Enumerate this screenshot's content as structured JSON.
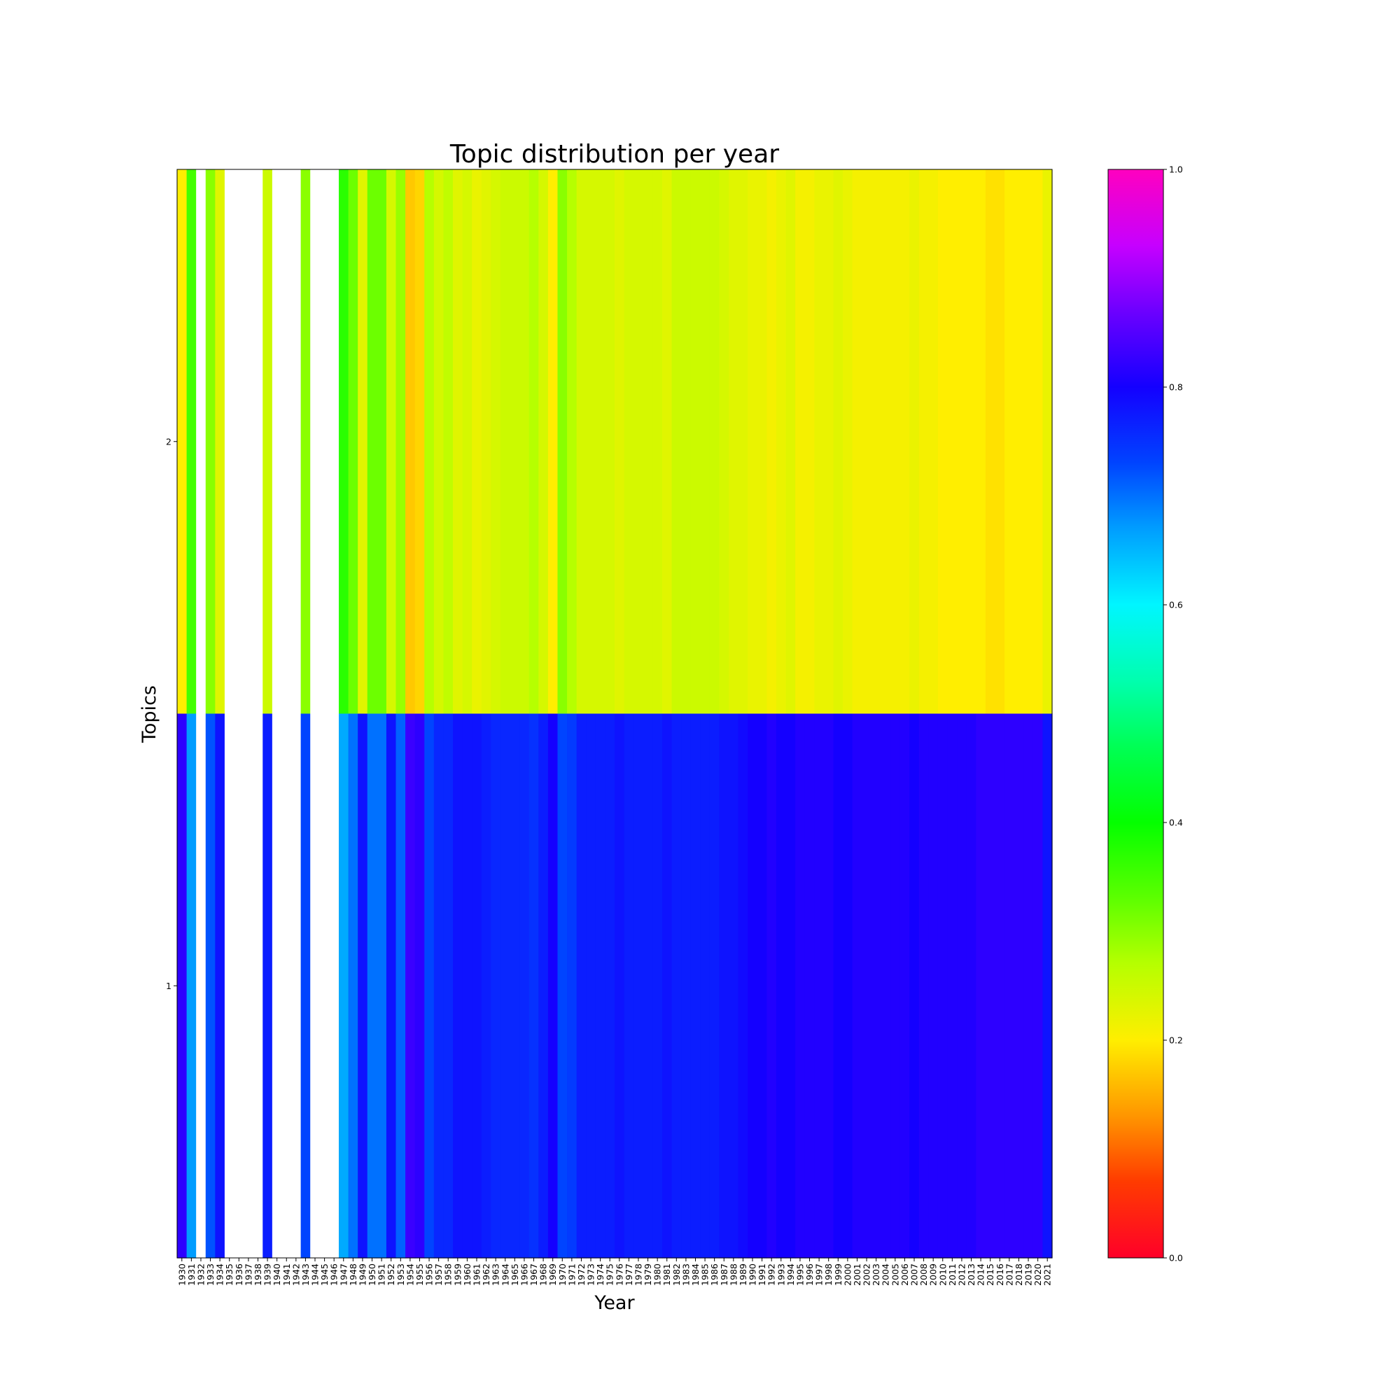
{
  "chart_data": {
    "type": "heatmap",
    "title": "Topic distribution per year",
    "xlabel": "Year",
    "ylabel": "Topics",
    "x": [
      "1930",
      "1931",
      "1932",
      "1933",
      "1934",
      "1935",
      "1936",
      "1937",
      "1938",
      "1939",
      "1940",
      "1941",
      "1942",
      "1943",
      "1944",
      "1945",
      "1946",
      "1947",
      "1948",
      "1949",
      "1950",
      "1951",
      "1952",
      "1953",
      "1954",
      "1955",
      "1956",
      "1957",
      "1958",
      "1959",
      "1960",
      "1961",
      "1962",
      "1963",
      "1964",
      "1965",
      "1966",
      "1967",
      "1968",
      "1969",
      "1970",
      "1971",
      "1972",
      "1973",
      "1974",
      "1975",
      "1976",
      "1977",
      "1978",
      "1979",
      "1980",
      "1981",
      "1982",
      "1983",
      "1984",
      "1985",
      "1986",
      "1987",
      "1988",
      "1989",
      "1990",
      "1991",
      "1992",
      "1993",
      "1994",
      "1995",
      "1996",
      "1997",
      "1998",
      "1999",
      "2000",
      "2001",
      "2002",
      "2003",
      "2004",
      "2005",
      "2006",
      "2007",
      "2008",
      "2009",
      "2010",
      "2011",
      "2012",
      "2013",
      "2014",
      "2015",
      "2016",
      "2017",
      "2018",
      "2019",
      "2020",
      "2021"
    ],
    "y_ticks": [
      "2",
      "1"
    ],
    "series": [
      {
        "name": "2",
        "values": [
          0.2,
          0.35,
          null,
          0.3,
          0.23,
          null,
          null,
          null,
          null,
          0.25,
          null,
          null,
          null,
          0.3,
          null,
          null,
          null,
          0.37,
          0.32,
          0.23,
          0.32,
          0.32,
          0.24,
          0.29,
          0.17,
          0.18,
          0.27,
          0.24,
          0.26,
          0.23,
          0.24,
          0.22,
          0.23,
          0.24,
          0.25,
          0.25,
          0.25,
          0.27,
          0.24,
          0.2,
          0.3,
          0.27,
          0.24,
          0.24,
          0.24,
          0.24,
          0.23,
          0.24,
          0.24,
          0.24,
          0.24,
          0.23,
          0.25,
          0.25,
          0.25,
          0.25,
          0.25,
          0.24,
          0.23,
          0.23,
          0.22,
          0.22,
          0.21,
          0.22,
          0.23,
          0.21,
          0.21,
          0.22,
          0.22,
          0.23,
          0.22,
          0.21,
          0.21,
          0.21,
          0.21,
          0.21,
          0.21,
          0.22,
          0.21,
          0.21,
          0.2,
          0.2,
          0.2,
          0.2,
          0.2,
          0.19,
          0.19,
          0.2,
          0.2,
          0.2,
          0.2,
          0.22
        ]
      },
      {
        "name": "1",
        "values": [
          0.82,
          0.67,
          null,
          0.72,
          0.78,
          null,
          null,
          null,
          null,
          0.77,
          null,
          null,
          null,
          0.73,
          null,
          null,
          null,
          0.66,
          0.7,
          0.78,
          0.7,
          0.7,
          0.78,
          0.71,
          0.83,
          0.82,
          0.73,
          0.76,
          0.76,
          0.78,
          0.78,
          0.78,
          0.77,
          0.76,
          0.76,
          0.76,
          0.76,
          0.75,
          0.77,
          0.8,
          0.73,
          0.74,
          0.77,
          0.77,
          0.77,
          0.77,
          0.78,
          0.77,
          0.77,
          0.77,
          0.77,
          0.78,
          0.77,
          0.77,
          0.77,
          0.77,
          0.77,
          0.78,
          0.78,
          0.79,
          0.8,
          0.8,
          0.81,
          0.8,
          0.8,
          0.81,
          0.81,
          0.81,
          0.81,
          0.8,
          0.8,
          0.81,
          0.81,
          0.81,
          0.81,
          0.81,
          0.81,
          0.8,
          0.81,
          0.81,
          0.81,
          0.81,
          0.81,
          0.81,
          0.82,
          0.82,
          0.82,
          0.82,
          0.82,
          0.82,
          0.82,
          0.78
        ]
      }
    ],
    "colorbar": {
      "colormap": "gist_rainbow",
      "range": [
        0.0,
        1.0
      ],
      "ticks": [
        "0.0",
        "0.2",
        "0.4",
        "0.6",
        "0.8",
        "1.0"
      ]
    },
    "missing_color": "#ffffff",
    "grid": false
  }
}
